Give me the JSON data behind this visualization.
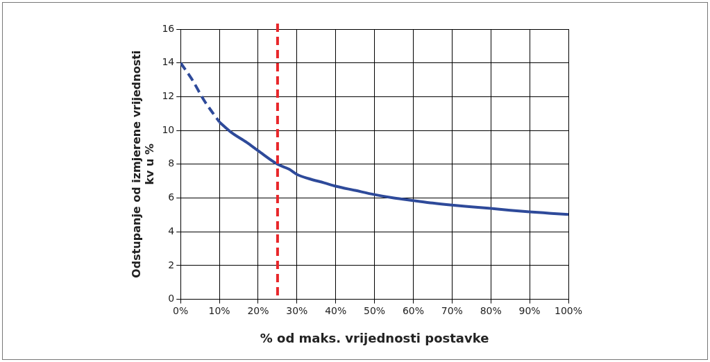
{
  "chart_data": {
    "type": "line",
    "xlabel": "% od maks. vrijednosti postavke",
    "ylabel": "Odstupanje od izmjerene vrijednosti\nkv u %",
    "series": [
      {
        "color": "#2e4a9a",
        "line_style": "dashed",
        "x": [
          0,
          3,
          6,
          10
        ],
        "values": [
          14,
          13,
          11.8,
          10.5
        ]
      },
      {
        "color": "#2e4a9a",
        "line_style": "solid",
        "x": [
          10,
          13,
          17,
          20,
          25,
          28,
          30,
          33,
          37,
          40,
          45,
          50,
          55,
          60,
          65,
          70,
          75,
          80,
          85,
          90,
          95,
          100
        ],
        "values": [
          10.5,
          9.9,
          9.3,
          8.8,
          8.0,
          7.7,
          7.4,
          7.15,
          6.9,
          6.7,
          6.45,
          6.2,
          6.0,
          5.85,
          5.7,
          5.58,
          5.48,
          5.38,
          5.27,
          5.18,
          5.1,
          5.02
        ]
      }
    ],
    "xlim": [
      0,
      100
    ],
    "xticks": [
      {
        "value": 0,
        "label": "0%"
      },
      {
        "value": 10,
        "label": "10%"
      },
      {
        "value": 20,
        "label": "20%"
      },
      {
        "value": 30,
        "label": "30%"
      },
      {
        "value": 40,
        "label": "40%"
      },
      {
        "value": 50,
        "label": "50%"
      },
      {
        "value": 60,
        "label": "60%"
      },
      {
        "value": 70,
        "label": "70%"
      },
      {
        "value": 80,
        "label": "80%"
      },
      {
        "value": 90,
        "label": "90%"
      },
      {
        "value": 100,
        "label": "100%"
      }
    ],
    "ylim": [
      0,
      16
    ],
    "yticks": [
      0,
      2,
      4,
      6,
      8,
      10,
      12,
      14,
      16
    ],
    "ref_lines": [
      {
        "axis": "x",
        "value": 25,
        "color": "#e8262a",
        "line_style": "dashed"
      }
    ],
    "grid": true,
    "legend": false,
    "marker": "none"
  }
}
